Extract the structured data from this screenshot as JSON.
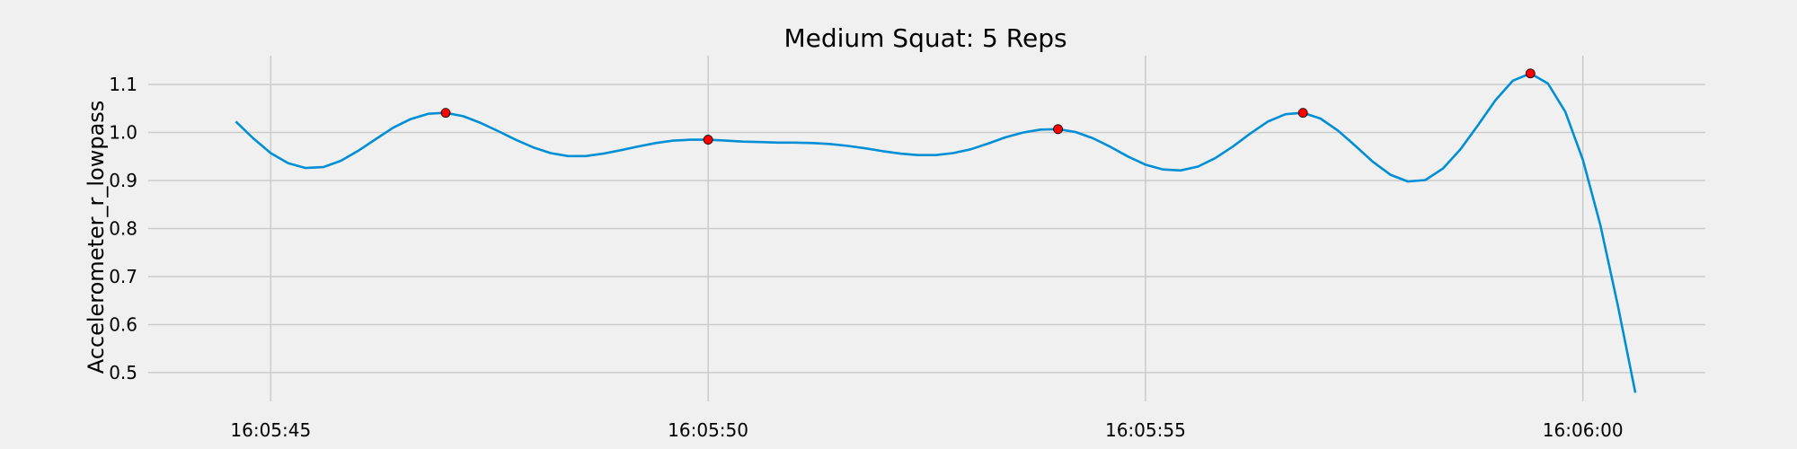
{
  "chart_data": {
    "type": "line",
    "title": "Medium Squat: 5 Reps",
    "xlabel": "",
    "ylabel": "Accelerometer_r_lowpass",
    "x_unit": "time",
    "x_range": [
      "16:05:43.6",
      "16:06:01.4"
    ],
    "ylim": [
      0.44,
      1.16
    ],
    "yticks": [
      0.5,
      0.6,
      0.7,
      0.8,
      0.9,
      1.0,
      1.1
    ],
    "ytick_labels": [
      "0.5",
      "0.6",
      "0.7",
      "0.8",
      "0.9",
      "1.0",
      "1.1"
    ],
    "xticks": [
      "16:05:45",
      "16:05:50",
      "16:05:55",
      "16:06:00"
    ],
    "xtick_labels": [
      "16:05:45",
      "16:05:50",
      "16:05:55",
      "16:06:00"
    ],
    "grid": true,
    "series": [
      {
        "color": "#008fd5",
        "x": [
          "16:05:44.6",
          "16:05:44.8",
          "16:05:45.0",
          "16:05:45.2",
          "16:05:45.4",
          "16:05:45.6",
          "16:05:45.8",
          "16:05:46.0",
          "16:05:46.2",
          "16:05:46.4",
          "16:05:46.6",
          "16:05:46.8",
          "16:05:47.0",
          "16:05:47.2",
          "16:05:47.4",
          "16:05:47.6",
          "16:05:47.8",
          "16:05:48.0",
          "16:05:48.2",
          "16:05:48.4",
          "16:05:48.6",
          "16:05:48.8",
          "16:05:49.0",
          "16:05:49.2",
          "16:05:49.4",
          "16:05:49.6",
          "16:05:49.8",
          "16:05:50.0",
          "16:05:50.2",
          "16:05:50.4",
          "16:05:50.6",
          "16:05:50.8",
          "16:05:51.0",
          "16:05:51.2",
          "16:05:51.4",
          "16:05:51.6",
          "16:05:51.8",
          "16:05:52.0",
          "16:05:52.2",
          "16:05:52.4",
          "16:05:52.6",
          "16:05:52.8",
          "16:05:53.0",
          "16:05:53.2",
          "16:05:53.4",
          "16:05:53.6",
          "16:05:53.8",
          "16:05:54.0",
          "16:05:54.2",
          "16:05:54.4",
          "16:05:54.6",
          "16:05:54.8",
          "16:05:55.0",
          "16:05:55.2",
          "16:05:55.4",
          "16:05:55.6",
          "16:05:55.8",
          "16:05:56.0",
          "16:05:56.2",
          "16:05:56.4",
          "16:05:56.6",
          "16:05:56.8",
          "16:05:57.0",
          "16:05:57.2",
          "16:05:57.4",
          "16:05:57.6",
          "16:05:57.8",
          "16:05:58.0",
          "16:05:58.2",
          "16:05:58.4",
          "16:05:58.6",
          "16:05:58.8",
          "16:05:59.0",
          "16:05:59.2",
          "16:05:59.4",
          "16:05:59.6",
          "16:05:59.8",
          "16:06:00.0",
          "16:06:00.2",
          "16:06:00.4",
          "16:06:00.6"
        ],
        "values": [
          1.023,
          0.988,
          0.957,
          0.936,
          0.926,
          0.928,
          0.941,
          0.962,
          0.986,
          1.01,
          1.028,
          1.039,
          1.041,
          1.034,
          1.02,
          1.003,
          0.985,
          0.969,
          0.957,
          0.951,
          0.951,
          0.956,
          0.963,
          0.971,
          0.978,
          0.983,
          0.985,
          0.985,
          0.983,
          0.981,
          0.98,
          0.979,
          0.979,
          0.978,
          0.976,
          0.972,
          0.967,
          0.961,
          0.956,
          0.953,
          0.953,
          0.957,
          0.965,
          0.977,
          0.99,
          1.0,
          1.006,
          1.007,
          1.001,
          0.988,
          0.97,
          0.95,
          0.933,
          0.923,
          0.921,
          0.929,
          0.947,
          0.971,
          0.998,
          1.023,
          1.038,
          1.041,
          1.029,
          1.004,
          0.972,
          0.939,
          0.912,
          0.898,
          0.901,
          0.925,
          0.965,
          1.015,
          1.067,
          1.108,
          1.123,
          1.102,
          1.043,
          0.943,
          0.807,
          0.64,
          0.458
        ]
      }
    ],
    "peaks": {
      "color": "#ff0000",
      "x": [
        "16:05:47.0",
        "16:05:50.0",
        "16:05:54.0",
        "16:05:56.8",
        "16:05:59.4"
      ],
      "values": [
        1.041,
        0.985,
        1.007,
        1.041,
        1.123
      ]
    }
  }
}
